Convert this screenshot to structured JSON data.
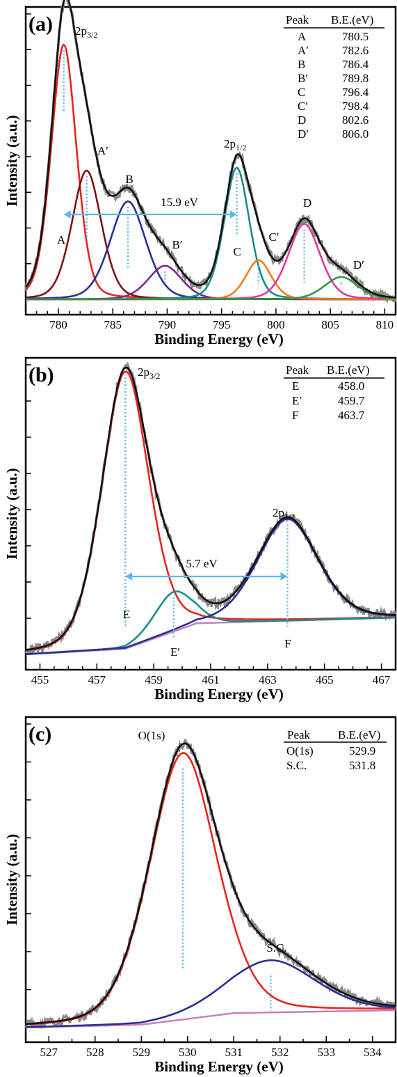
{
  "figure": {
    "panels": [
      {
        "label": "(a)",
        "xlabel": "Binding Energy (eV)",
        "ylabel": "Intensity (a.u.)",
        "ticks": [
          "780",
          "785",
          "790",
          "795",
          "800",
          "805",
          "810"
        ],
        "table": {
          "headers": [
            "Peak",
            "B.E.(eV)"
          ],
          "rows": [
            [
              "A",
              "780.5"
            ],
            [
              "A′",
              "782.6"
            ],
            [
              "B",
              "786.4"
            ],
            [
              "B′",
              "789.8"
            ],
            [
              "C",
              "796.4"
            ],
            [
              "C′",
              "798.4"
            ],
            [
              "D",
              "802.6"
            ],
            [
              "D′",
              "806.0"
            ]
          ]
        },
        "peak_labels": [
          "A",
          "A′",
          "B",
          "B′",
          "C",
          "C′",
          "D",
          "D′"
        ],
        "split_label": "15.9 eV",
        "main_label_a": "2p3/2",
        "main_label_b": "2p1/2"
      },
      {
        "label": "(b)",
        "xlabel": "Binding Energy (eV)",
        "ylabel": "Intensity (a.u.)",
        "ticks": [
          "455",
          "457",
          "459",
          "461",
          "463",
          "465",
          "467"
        ],
        "table": {
          "headers": [
            "Peak",
            "B.E.(eV)"
          ],
          "rows": [
            [
              "E",
              "458.0"
            ],
            [
              "E′",
              "459.7"
            ],
            [
              "F",
              "463.7"
            ]
          ]
        },
        "peak_labels": [
          "E",
          "E′",
          "F"
        ],
        "split_label": "5.7 eV",
        "main_label_a": "2p3/2",
        "main_label_b": "2p1/2"
      },
      {
        "label": "(c)",
        "xlabel": "Binding Energy (eV)",
        "ylabel": "Intensity (a.u.)",
        "ticks": [
          "527",
          "528",
          "529",
          "530",
          "531",
          "532",
          "533",
          "534"
        ],
        "table": {
          "headers": [
            "Peak",
            "B.E.(eV)"
          ],
          "rows": [
            [
              "O(1s)",
              "529.9"
            ],
            [
              "S.C.",
              "531.8"
            ]
          ]
        },
        "peak_labels": [
          "O(1s)",
          "S.C."
        ]
      }
    ]
  },
  "chart_data": [
    {
      "type": "line",
      "title": "",
      "xlabel": "Binding Energy (eV)",
      "ylabel": "Intensity (a.u.)",
      "xlim": [
        777,
        811
      ],
      "ylim": [
        0,
        1
      ],
      "grid": false,
      "legend": "none",
      "peaks": [
        {
          "name": "A",
          "center": 780.5,
          "height": 0.91,
          "width": 1.2,
          "color": "#e8251f"
        },
        {
          "name": "A′",
          "center": 782.6,
          "height": 0.46,
          "width": 1.4,
          "color": "#7b1414"
        },
        {
          "name": "B",
          "center": 786.4,
          "height": 0.35,
          "width": 1.7,
          "color": "#2b2f94"
        },
        {
          "name": "B′",
          "center": 789.8,
          "height": 0.12,
          "width": 1.6,
          "color": "#7b2a8e"
        },
        {
          "name": "C",
          "center": 796.4,
          "height": 0.47,
          "width": 1.2,
          "color": "#1b8c8c"
        },
        {
          "name": "C′",
          "center": 798.4,
          "height": 0.14,
          "width": 1.2,
          "color": "#f07c1c"
        },
        {
          "name": "D",
          "center": 802.6,
          "height": 0.27,
          "width": 1.5,
          "color": "#e0379c"
        },
        {
          "name": "D′",
          "center": 806.0,
          "height": 0.08,
          "width": 1.6,
          "color": "#2e9a3e"
        }
      ],
      "baseline": [
        {
          "x": 777,
          "y": 0.0
        },
        {
          "x": 811,
          "y": 0.0
        }
      ],
      "split": {
        "from": 780.5,
        "to": 796.4,
        "value_ev": 15.9
      }
    },
    {
      "type": "line",
      "title": "",
      "xlabel": "Binding Energy (eV)",
      "ylabel": "Intensity (a.u.)",
      "xlim": [
        454.5,
        467.5
      ],
      "ylim": [
        0,
        1
      ],
      "grid": false,
      "legend": "none",
      "peaks": [
        {
          "name": "E",
          "center": 458.0,
          "height": 0.98,
          "width": 0.85,
          "color": "#e8251f"
        },
        {
          "name": "E′",
          "center": 459.7,
          "height": 0.14,
          "width": 0.7,
          "color": "#1b8c8c"
        },
        {
          "name": "F",
          "center": 463.7,
          "height": 0.36,
          "width": 1.1,
          "color": "#2b2f94"
        }
      ],
      "baseline": [
        {
          "x": 454.5,
          "y": 0.0
        },
        {
          "x": 458.0,
          "y": 0.02
        },
        {
          "x": 460.5,
          "y": 0.11
        },
        {
          "x": 467.5,
          "y": 0.13
        }
      ],
      "split": {
        "from": 458.0,
        "to": 463.7,
        "value_ev": 5.7
      }
    },
    {
      "type": "line",
      "title": "",
      "xlabel": "Binding Energy (eV)",
      "ylabel": "Intensity (a.u.)",
      "xlim": [
        526.5,
        534.5
      ],
      "ylim": [
        0,
        1
      ],
      "grid": false,
      "legend": "none",
      "peaks": [
        {
          "name": "O(1s)",
          "center": 529.9,
          "height": 0.92,
          "width": 0.75,
          "color": "#e8251f"
        },
        {
          "name": "S.C.",
          "center": 531.8,
          "height": 0.18,
          "width": 1.0,
          "color": "#2b2f94"
        }
      ],
      "baseline": [
        {
          "x": 526.5,
          "y": 0.0
        },
        {
          "x": 529.0,
          "y": 0.01
        },
        {
          "x": 531.0,
          "y": 0.05
        },
        {
          "x": 534.5,
          "y": 0.06
        }
      ]
    }
  ],
  "colors": {
    "envelope": "#111111",
    "raw": "#8a8a8a",
    "background_line": "#c97fc2",
    "dotted": "#4db3e6",
    "arrow": "#5cb8e8",
    "frame": "#000000"
  }
}
